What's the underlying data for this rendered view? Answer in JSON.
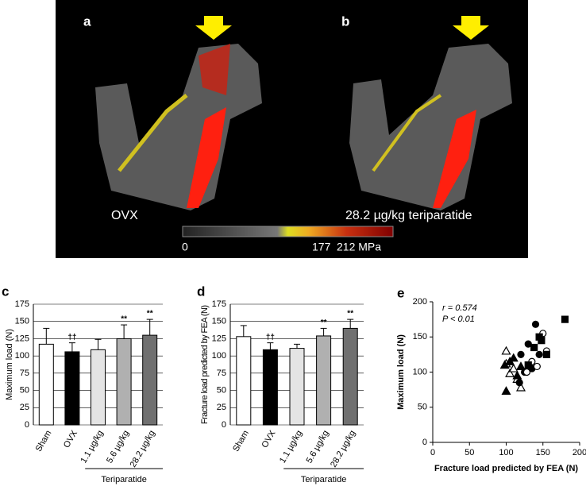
{
  "figure": {
    "panel_a": "a",
    "panel_b": "b",
    "caption_a": "OVX",
    "caption_b": "28.2 µg/kg teriparatide",
    "colorbar_labels": [
      "0",
      "177",
      "212 MPa"
    ]
  },
  "chart_data": [
    {
      "type": "bar",
      "panel": "c",
      "ylabel": "Maximum load (N)",
      "categories": [
        "Sham",
        "OVX",
        "1.1 µg/kg",
        "5.6 µg/kg",
        "28.2 µg/kg"
      ],
      "values": [
        117,
        106,
        109,
        125,
        130
      ],
      "errors": [
        23,
        13,
        15,
        20,
        23
      ],
      "annotations": [
        null,
        "††",
        null,
        "**",
        "**"
      ],
      "colors": [
        "#ffffff",
        "#000000",
        "#e4e4e4",
        "#b0b0b0",
        "#707070"
      ],
      "group_label": "Teriparatide",
      "ylim": [
        0,
        175
      ],
      "yticks": [
        0,
        25,
        50,
        75,
        100,
        125,
        150,
        175
      ],
      "grid": true
    },
    {
      "type": "bar",
      "panel": "d",
      "ylabel": "Fracture load predicted by FEA (N)",
      "categories": [
        "Sham",
        "OVX",
        "1.1 µg/kg",
        "5.6 µg/kg",
        "28.2 µg/kg"
      ],
      "values": [
        128,
        109,
        111,
        129,
        140
      ],
      "errors": [
        16,
        10,
        6,
        11,
        13
      ],
      "annotations": [
        null,
        "††",
        null,
        "**",
        "**"
      ],
      "colors": [
        "#ffffff",
        "#000000",
        "#e4e4e4",
        "#b0b0b0",
        "#707070"
      ],
      "group_label": "Teriparatide",
      "ylim": [
        0,
        175
      ],
      "yticks": [
        0,
        25,
        50,
        75,
        100,
        125,
        150,
        175
      ],
      "grid": true
    },
    {
      "type": "scatter",
      "panel": "e",
      "xlabel": "Fracture load predicted by FEA (N)",
      "ylabel": "Maximum load (N)",
      "annotations": [
        "r = 0.574",
        "P < 0.01"
      ],
      "series": [
        {
          "marker": "triangle-open",
          "x": [
            100,
            100,
            105,
            115,
            120,
            110
          ],
          "values": [
            130,
            112,
            98,
            90,
            78,
            105
          ]
        },
        {
          "marker": "triangle",
          "x": [
            100,
            105,
            110,
            115,
            120,
            98
          ],
          "values": [
            73,
            115,
            120,
            95,
            108,
            110
          ]
        },
        {
          "marker": "circle",
          "x": [
            140,
            130,
            120,
            135,
            125,
            145,
            118
          ],
          "values": [
            168,
            140,
            125,
            105,
            100,
            125,
            85
          ]
        },
        {
          "marker": "circle-open",
          "x": [
            150,
            155,
            135,
            128,
            142
          ],
          "values": [
            155,
            130,
            115,
            100,
            108
          ]
        },
        {
          "marker": "square",
          "x": [
            180,
            145,
            155,
            148,
            130,
            138
          ],
          "values": [
            175,
            150,
            125,
            145,
            110,
            135
          ]
        }
      ],
      "xlim": [
        0,
        200
      ],
      "xticks": [
        0,
        50,
        100,
        150,
        200
      ],
      "ylim": [
        0,
        200
      ],
      "yticks": [
        0,
        50,
        100,
        150,
        200
      ]
    }
  ]
}
